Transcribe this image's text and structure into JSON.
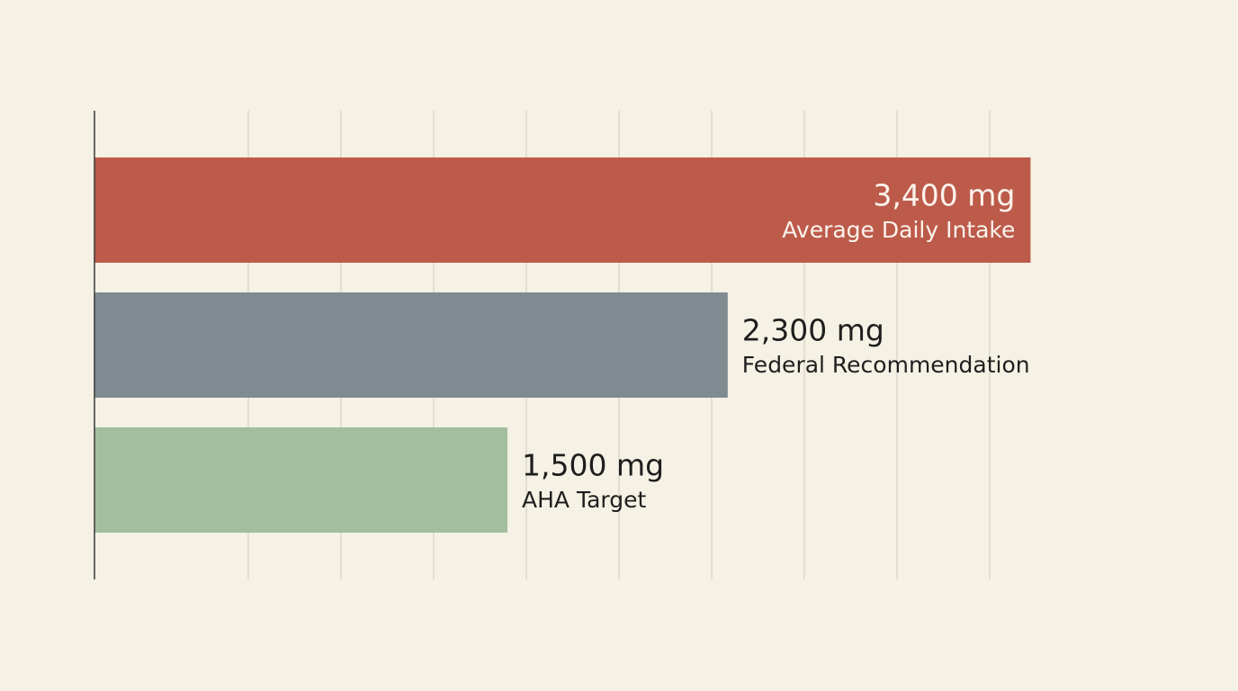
{
  "chart_data": {
    "type": "bar",
    "orientation": "horizontal",
    "categories": [
      "Average Daily Intake",
      "Federal Recommendation",
      "AHA Target"
    ],
    "values": [
      3400,
      2300,
      1500
    ],
    "value_labels": [
      "3,400 mg",
      "2,300 mg",
      "1,500 mg"
    ],
    "colors": [
      "#bd5b4b",
      "#7f8a91",
      "#a3bd9f"
    ],
    "xlim": [
      0,
      4000
    ],
    "grid": true
  }
}
